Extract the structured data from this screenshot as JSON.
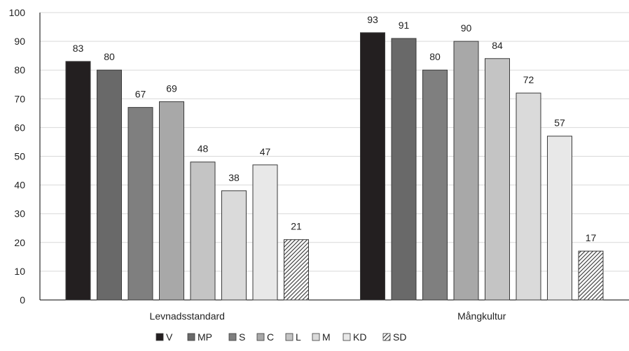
{
  "chart_data": {
    "type": "bar",
    "title": "",
    "xlabel": "",
    "ylabel": "",
    "ylim": [
      0,
      100
    ],
    "yticks": [
      0,
      10,
      20,
      30,
      40,
      50,
      60,
      70,
      80,
      90,
      100
    ],
    "grid": true,
    "legend_position": "bottom",
    "categories": [
      "Levnadsstandard",
      "Mångkultur"
    ],
    "series": [
      {
        "name": "V",
        "values": [
          83,
          93
        ],
        "color": "#231f20"
      },
      {
        "name": "MP",
        "values": [
          80,
          91
        ],
        "color": "#696969"
      },
      {
        "name": "S",
        "values": [
          67,
          80
        ],
        "color": "#7f7f7f"
      },
      {
        "name": "C",
        "values": [
          69,
          90
        ],
        "color": "#a8a8a8"
      },
      {
        "name": "L",
        "values": [
          48,
          84
        ],
        "color": "#c4c4c4"
      },
      {
        "name": "M",
        "values": [
          38,
          72
        ],
        "color": "#dadada"
      },
      {
        "name": "KD",
        "values": [
          47,
          57
        ],
        "color": "#e8e8e8"
      },
      {
        "name": "SD",
        "values": [
          21,
          17
        ],
        "color": "hatched"
      }
    ]
  }
}
